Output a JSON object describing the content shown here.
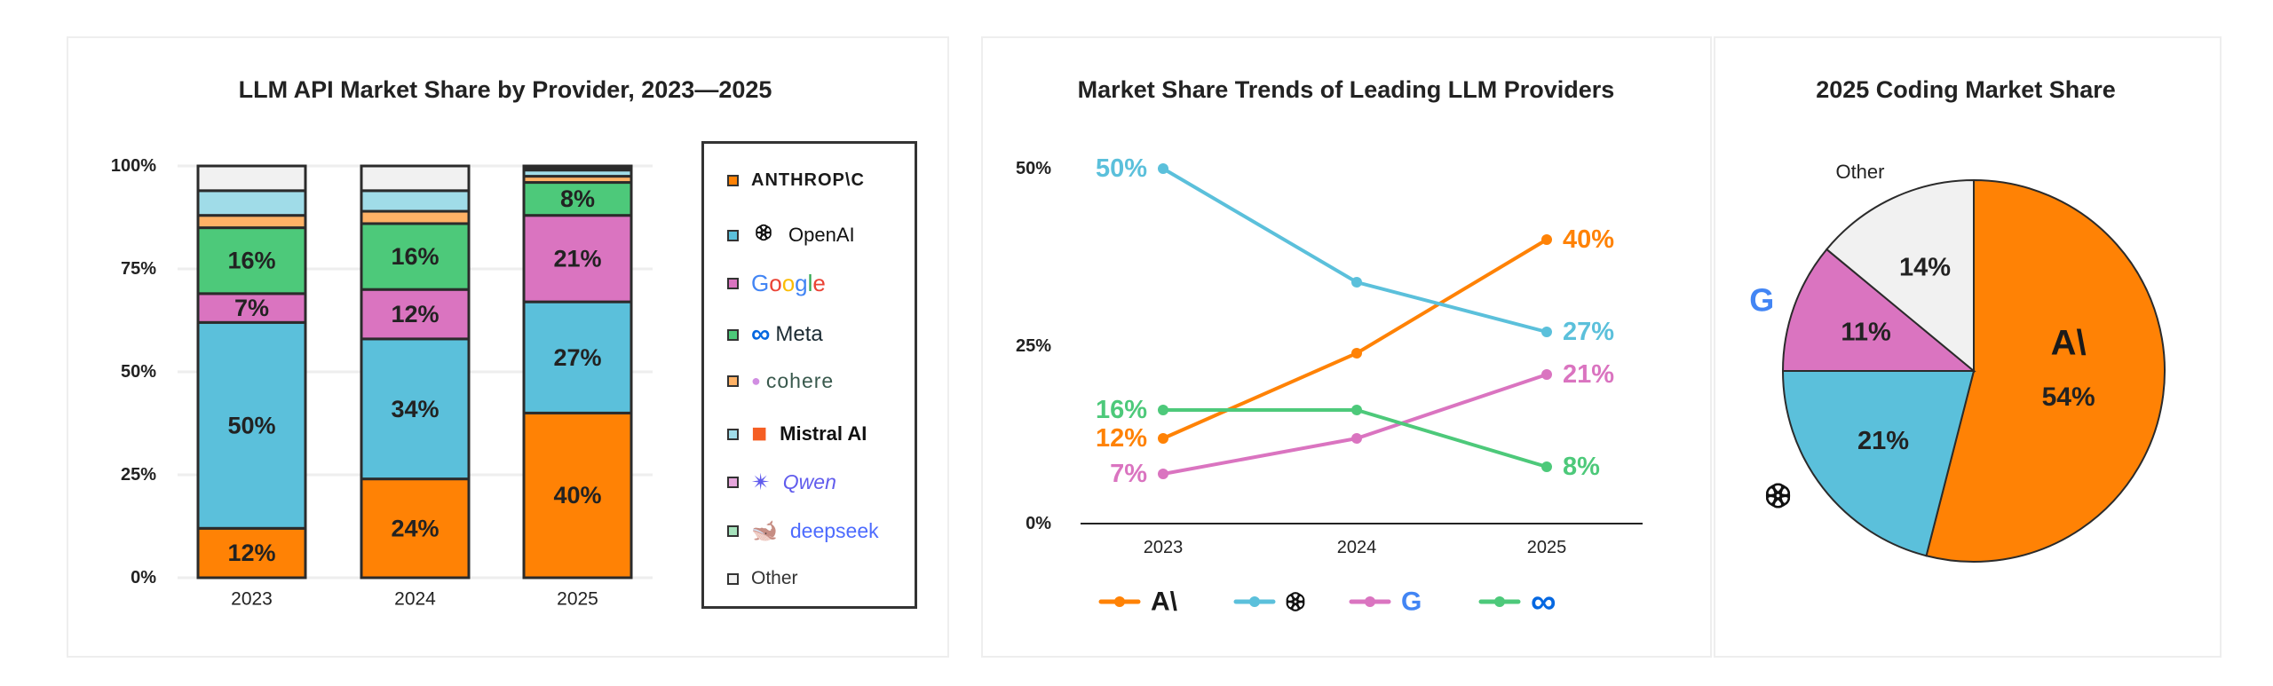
{
  "colors": {
    "anthropic": "#FF8205",
    "openai": "#5BC0DB",
    "google": "#DA74C0",
    "meta": "#4DC97A",
    "cohere": "#FFB266",
    "mistral": "#A0DCE8",
    "qwen": "#E6A6DC",
    "deepseek": "#A6E2BC",
    "other": "#F1F1F1"
  },
  "chart_data": [
    {
      "type": "bar",
      "stacked": true,
      "title": "LLM API Market Share by Provider, 2023—2025",
      "categories": [
        "2023",
        "2024",
        "2025"
      ],
      "ylim": [
        0,
        100
      ],
      "yticks": [
        "0%",
        "25%",
        "50%",
        "75%",
        "100%"
      ],
      "grid": true,
      "legend_position": "right",
      "series": [
        {
          "key": "anthropic",
          "name": "ANTHROP\\C",
          "values": [
            12,
            24,
            40
          ],
          "labels": [
            "12%",
            "24%",
            "40%"
          ]
        },
        {
          "key": "openai",
          "name": "OpenAI",
          "values": [
            50,
            34,
            27
          ],
          "labels": [
            "50%",
            "34%",
            "27%"
          ]
        },
        {
          "key": "google",
          "name": "Google",
          "values": [
            7,
            12,
            21
          ],
          "labels": [
            "7%",
            "12%",
            "21%"
          ]
        },
        {
          "key": "meta",
          "name": "Meta",
          "values": [
            16,
            16,
            8
          ],
          "labels": [
            "16%",
            "16%",
            "8%"
          ]
        },
        {
          "key": "cohere",
          "name": "cohere",
          "values": [
            3,
            3,
            1.5
          ],
          "labels": [
            null,
            null,
            null
          ]
        },
        {
          "key": "mistral",
          "name": "Mistral AI",
          "values": [
            6,
            5,
            1.5
          ],
          "labels": [
            null,
            null,
            null
          ]
        },
        {
          "key": "qwen",
          "name": "Qwen",
          "values": [
            0,
            0,
            0.5
          ],
          "labels": [
            null,
            null,
            null
          ]
        },
        {
          "key": "deepseek",
          "name": "deepseek",
          "values": [
            0,
            0,
            0.2
          ],
          "labels": [
            null,
            null,
            null
          ]
        },
        {
          "key": "other",
          "name": "Other",
          "values": [
            6,
            6,
            0.3
          ],
          "labels": [
            null,
            null,
            null
          ]
        }
      ]
    },
    {
      "type": "line",
      "title": "Market Share Trends of Leading LLM Providers",
      "x": [
        "2023",
        "2024",
        "2025"
      ],
      "ylim": [
        0,
        50
      ],
      "yticks": [
        "0%",
        "25%",
        "50%"
      ],
      "legend_position": "bottom",
      "series": [
        {
          "key": "anthropic",
          "name": "A\\",
          "values": [
            12,
            24,
            40
          ],
          "start_label": "12%",
          "end_label": "40%"
        },
        {
          "key": "openai",
          "name": "OpenAI",
          "values": [
            50,
            34,
            27
          ],
          "start_label": "50%",
          "end_label": "27%"
        },
        {
          "key": "google",
          "name": "G",
          "values": [
            7,
            12,
            21
          ],
          "start_label": "7%",
          "end_label": "21%"
        },
        {
          "key": "meta",
          "name": "∞",
          "values": [
            16,
            16,
            8
          ],
          "start_label": "16%",
          "end_label": "8%"
        }
      ]
    },
    {
      "type": "pie",
      "title": "2025 Coding Market Share",
      "slices": [
        {
          "key": "anthropic",
          "name": "A\\",
          "value": 54,
          "label": "54%"
        },
        {
          "key": "openai",
          "name": "OpenAI",
          "value": 21,
          "label": "21%"
        },
        {
          "key": "google",
          "name": "G",
          "value": 11,
          "label": "11%"
        },
        {
          "key": "other",
          "name": "Other",
          "value": 14,
          "label": "14%"
        }
      ]
    }
  ]
}
